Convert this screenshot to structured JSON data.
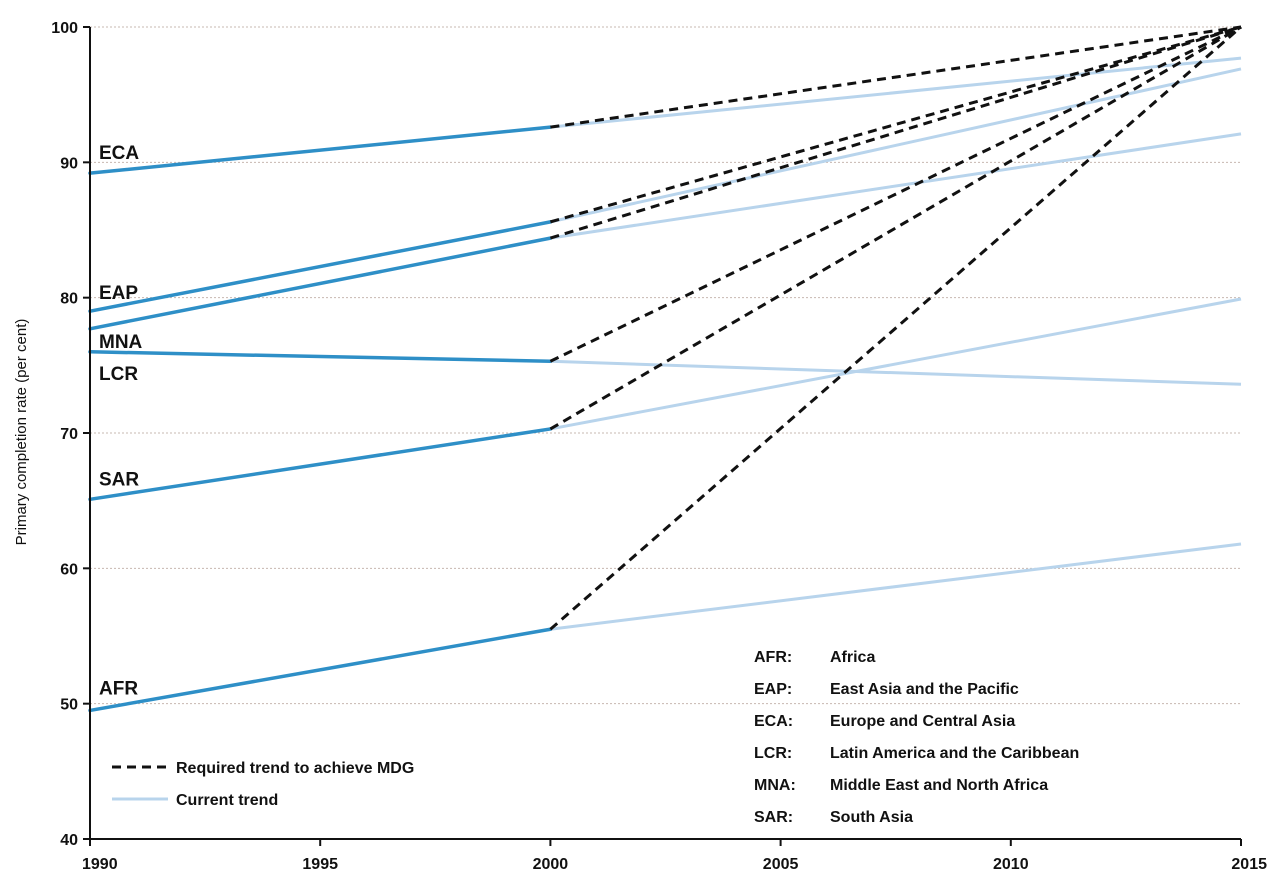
{
  "chart_data": {
    "type": "line",
    "title": "",
    "xlabel": "",
    "ylabel": "Primary completion rate (per cent)",
    "xlim": [
      1990,
      2015
    ],
    "ylim": [
      40,
      100
    ],
    "xticks": [
      1990,
      1995,
      2000,
      2005,
      2010,
      2015
    ],
    "yticks": [
      40,
      50,
      60,
      70,
      80,
      90,
      100
    ],
    "grid": true,
    "colors": {
      "historical": "#2e8fc7",
      "current": "#b8d4ec",
      "required": "#111111"
    },
    "series": [
      {
        "name": "ECA",
        "historical": [
          [
            1990,
            89.2
          ],
          [
            2000,
            92.6
          ]
        ],
        "current_trend_2015": 97.7,
        "required_2015": 100
      },
      {
        "name": "EAP",
        "historical": [
          [
            1990,
            79.0
          ],
          [
            2000,
            85.6
          ]
        ],
        "current_trend_2015": 96.9,
        "required_2015": 100
      },
      {
        "name": "MNA",
        "historical": [
          [
            1990,
            77.7
          ],
          [
            2000,
            84.4
          ]
        ],
        "current_trend_2015": 92.1,
        "required_2015": 100
      },
      {
        "name": "LCR",
        "historical": [
          [
            1990,
            76.0
          ],
          [
            2000,
            75.3
          ]
        ],
        "current_trend_2015": 73.6,
        "required_2015": 100
      },
      {
        "name": "SAR",
        "historical": [
          [
            1990,
            65.1
          ],
          [
            2000,
            70.3
          ]
        ],
        "current_trend_2015": 79.9,
        "required_2015": 100
      },
      {
        "name": "AFR",
        "historical": [
          [
            1990,
            49.5
          ],
          [
            2000,
            55.5
          ]
        ],
        "current_trend_2015": 61.8,
        "required_2015": 100
      }
    ],
    "legend": {
      "placement": "bottom-left",
      "required": "Required trend to achieve MDG",
      "current": "Current trend"
    },
    "abbreviations": [
      {
        "code": "AFR:",
        "name": "Africa"
      },
      {
        "code": "EAP:",
        "name": "East Asia and the Pacific"
      },
      {
        "code": "ECA:",
        "name": "Europe and Central Asia"
      },
      {
        "code": "LCR:",
        "name": "Latin America and the Caribbean"
      },
      {
        "code": "MNA:",
        "name": "Middle East and North Africa"
      },
      {
        "code": "SAR:",
        "name": "South Asia"
      }
    ]
  }
}
